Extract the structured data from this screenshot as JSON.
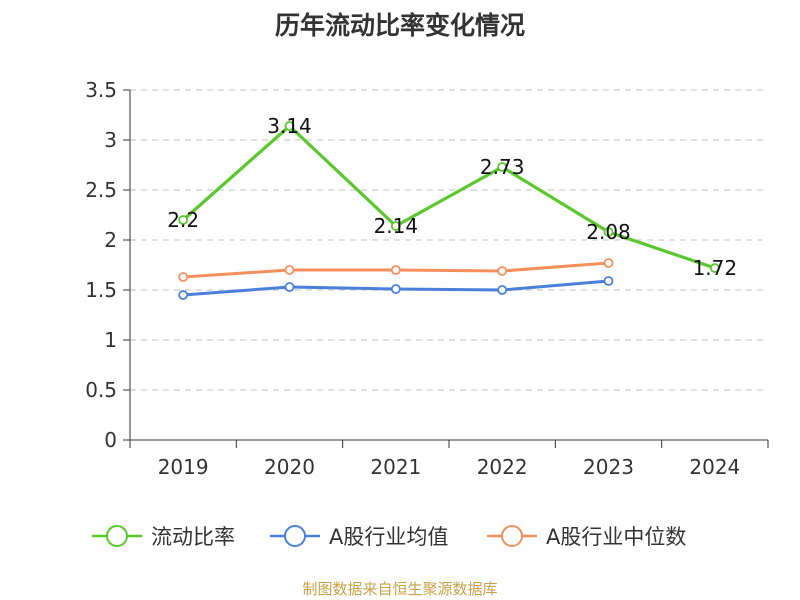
{
  "title": "历年流动比率变化情况",
  "source": "制图数据来自恒生聚源数据库",
  "chart_data": {
    "type": "line",
    "title": "历年流动比率变化情况",
    "categories": [
      "2019",
      "2020",
      "2021",
      "2022",
      "2023",
      "2024"
    ],
    "ylim": [
      0,
      3.5
    ],
    "yticks": [
      "0",
      "0.5",
      "1",
      "1.5",
      "2",
      "2.5",
      "3",
      "3.5"
    ],
    "grid": true,
    "legend_position": "bottom",
    "series": [
      {
        "name": "流动比率",
        "color": "#5ac82d",
        "values": [
          2.2,
          3.14,
          2.14,
          2.73,
          2.08,
          1.72
        ],
        "labels": [
          "2.2",
          "3.14",
          "2.14",
          "2.73",
          "2.08",
          "1.72"
        ]
      },
      {
        "name": "A股行业均值",
        "color": "#4a7fdb",
        "values": [
          1.45,
          1.53,
          1.51,
          1.5,
          1.59,
          null
        ]
      },
      {
        "name": "A股行业中位数",
        "color": "#f5905c",
        "values": [
          1.63,
          1.7,
          1.7,
          1.69,
          1.77,
          null
        ]
      }
    ]
  }
}
